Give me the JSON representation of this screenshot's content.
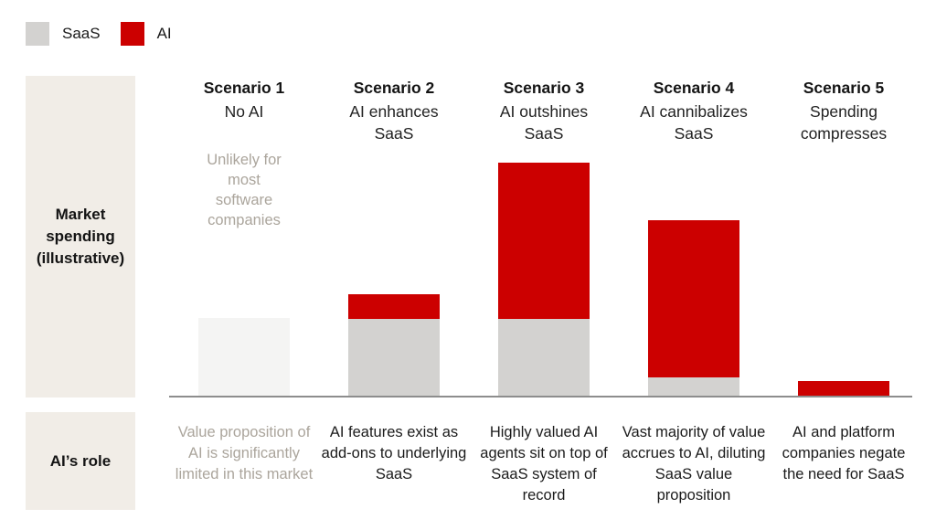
{
  "legend": {
    "items": [
      {
        "label": "SaaS",
        "color": "#d3d2d0"
      },
      {
        "label": "AI",
        "color": "#cc0000"
      }
    ]
  },
  "rails": {
    "market_label": "Market spending (illustrative)",
    "role_label": "AI’s role"
  },
  "colors": {
    "saas": "#d3d2d0",
    "saas_faded": "#f4f4f3",
    "ai": "#cc0000",
    "rail_background": "#f1ede7",
    "muted_text": "#aba59c",
    "axis": "#8d8d8d"
  },
  "scenarios": [
    {
      "title": "Scenario 1",
      "subtitle": "No AI",
      "note": "Unlikely for most software companies",
      "description": "Value proposition of AI is significantly limited in this market",
      "description_muted": true,
      "saas_faded": true
    },
    {
      "title": "Scenario 2",
      "subtitle": "AI enhances SaaS",
      "description": "AI features exist as add-ons to underlying SaaS",
      "description_muted": false,
      "saas_faded": false
    },
    {
      "title": "Scenario 3",
      "subtitle": "AI outshines SaaS",
      "description": "Highly valued AI agents sit on top of SaaS system of record",
      "description_muted": false,
      "saas_faded": false
    },
    {
      "title": "Scenario 4",
      "subtitle": "AI cannibalizes SaaS",
      "description": "Vast majority of value accrues to AI, diluting SaaS value proposition",
      "description_muted": false,
      "saas_faded": false
    },
    {
      "title": "Scenario 5",
      "subtitle": "Spending compresses",
      "description": "AI and platform companies negate the need for SaaS",
      "description_muted": false,
      "saas_faded": false
    }
  ],
  "chart_data": {
    "type": "bar",
    "stacked": true,
    "categories": [
      "Scenario 1: No AI",
      "Scenario 2: AI enhances SaaS",
      "Scenario 3: AI outshines SaaS",
      "Scenario 4: AI cannibalizes SaaS",
      "Scenario 5: Spending compresses"
    ],
    "series": [
      {
        "name": "SaaS",
        "color": "#d3d2d0",
        "values": [
          86,
          85,
          85,
          21,
          0
        ]
      },
      {
        "name": "AI",
        "color": "#cc0000",
        "values": [
          0,
          27,
          171,
          172,
          17
        ]
      }
    ],
    "title": "Market spending (illustrative)",
    "xlabel": "",
    "ylabel": "Market spending (illustrative)",
    "ylim": [
      0,
      350
    ],
    "grid": false,
    "legend_position": "top-left",
    "value_units": "illustrative relative units (no numeric axis shown in figure)",
    "annotations": [
      "Scenario 1 SaaS bar rendered faded/near-white: Unlikely for most software companies"
    ]
  }
}
